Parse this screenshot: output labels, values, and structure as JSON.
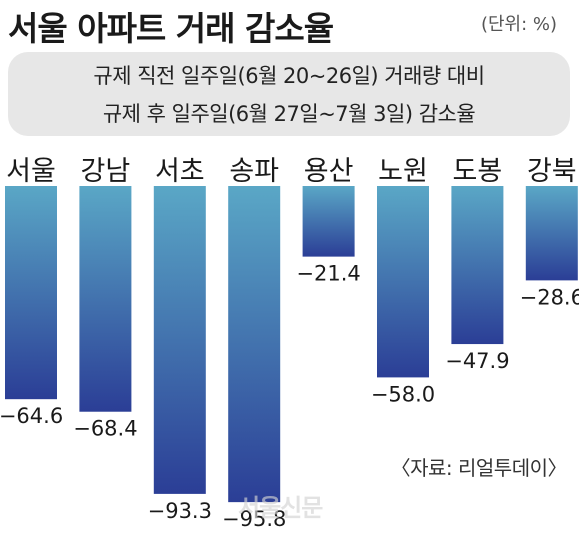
{
  "title": "서울 아파트 거래 감소율",
  "unit": "(단위: %)",
  "subtitle_line1": "규제 직전 일주일(6월 20~26일) 거래량 대비",
  "subtitle_line2": "규제 후 일주일(6월 27일~7월 3일) 감소율",
  "source": "〈자료: 리얼투데이〉",
  "watermark": "서울신문",
  "colors": {
    "bar_top": "#5aa7c6",
    "bar_bottom": "#2b3e96",
    "text": "#1a1a1a"
  },
  "chart_data": {
    "type": "bar",
    "categories": [
      "서울",
      "강남",
      "서초",
      "송파",
      "용산",
      "노원",
      "도봉",
      "강북"
    ],
    "values": [
      -64.6,
      -68.4,
      -93.3,
      -95.8,
      -21.4,
      -58.0,
      -47.9,
      -28.6
    ],
    "value_labels": [
      "−64.6",
      "−68.4",
      "−93.3",
      "−95.8",
      "−21.4",
      "−58.0",
      "−47.9",
      "−28.6"
    ],
    "ylim": [
      -100,
      0
    ],
    "grid": false,
    "legend": "none"
  }
}
